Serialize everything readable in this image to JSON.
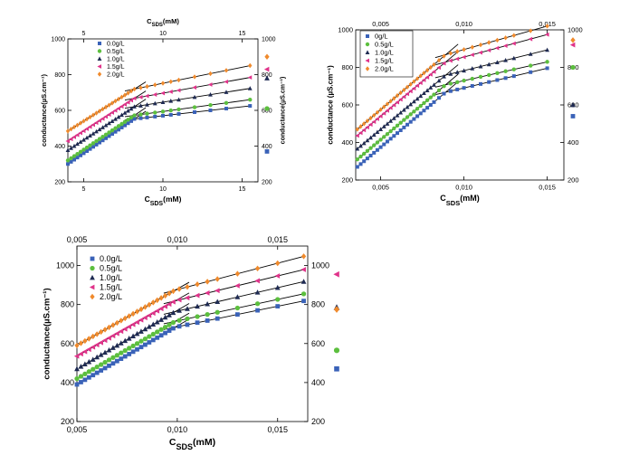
{
  "chart_data": [
    {
      "type": "scatter",
      "xlabel_main": "C",
      "xlabel_sub": "SDS",
      "xlabel_unit": "(mM)",
      "top_xlabel_main": "C",
      "top_xlabel_sub": "SDS",
      "top_xlabel_unit": "(mM)",
      "ylabel": "conductance(µS.cm⁻¹)",
      "right_ylabel": "conductance(µS.cm⁻¹)",
      "xlim": [
        4,
        16
      ],
      "ylim": [
        200,
        1000
      ],
      "xticks": [
        5,
        10,
        15
      ],
      "xtick_labels": [
        "5",
        "10",
        "15"
      ],
      "yticks": [
        200,
        400,
        600,
        800,
        1000
      ],
      "ytick_labels": [
        "200",
        "400",
        "600",
        "800",
        "1000"
      ],
      "grid": false,
      "legend_position": "top-left",
      "break_x": 8.2,
      "series": [
        {
          "name": "0.0g/L",
          "color": "#3a62b8",
          "marker": "square",
          "slope1": 60,
          "intercept1": 60,
          "slope2": 10,
          "outlier": 370,
          "x": [
            4,
            4.2,
            4.4,
            4.6,
            4.8,
            5,
            5.2,
            5.4,
            5.6,
            5.8,
            6,
            6.2,
            6.4,
            6.6,
            6.8,
            7,
            7.2,
            7.4,
            7.6,
            7.8,
            8,
            8.2,
            8.6,
            9,
            9.5,
            10,
            10.5,
            11,
            12,
            13,
            14,
            15.5
          ]
        },
        {
          "name": "0.5g/L",
          "color": "#5cbf3e",
          "marker": "circle",
          "slope1": 60,
          "intercept1": 80,
          "slope2": 12,
          "outlier": 610,
          "x": [
            4,
            4.2,
            4.4,
            4.6,
            4.8,
            5,
            5.2,
            5.4,
            5.6,
            5.8,
            6,
            6.2,
            6.4,
            6.6,
            6.8,
            7,
            7.2,
            7.4,
            7.6,
            7.8,
            8,
            8.2,
            8.6,
            9,
            9.5,
            10,
            10.5,
            11,
            12,
            13,
            14,
            15.5
          ]
        },
        {
          "name": "1.0g/L",
          "color": "#1e2a52",
          "marker": "triangle-up",
          "slope1": 58,
          "intercept1": 145,
          "slope2": 14,
          "outlier": 780,
          "x": [
            4,
            4.2,
            4.4,
            4.6,
            4.8,
            5,
            5.2,
            5.4,
            5.6,
            5.8,
            6,
            6.2,
            6.4,
            6.6,
            6.8,
            7,
            7.2,
            7.4,
            7.6,
            7.8,
            8,
            8.2,
            8.6,
            9,
            9.5,
            10,
            10.5,
            11,
            12,
            13,
            14,
            15.5
          ]
        },
        {
          "name": "1.5g/L",
          "color": "#e0338a",
          "marker": "triangle-left",
          "slope1": 57,
          "intercept1": 200,
          "slope2": 16,
          "outlier": 830,
          "x": [
            4,
            4.2,
            4.4,
            4.6,
            4.8,
            5,
            5.2,
            5.4,
            5.6,
            5.8,
            6,
            6.2,
            6.4,
            6.6,
            6.8,
            7,
            7.2,
            7.4,
            7.6,
            7.8,
            8,
            8.2,
            8.6,
            9,
            9.5,
            10,
            10.5,
            11,
            12,
            13,
            14,
            15.5
          ]
        },
        {
          "name": "2.0g/L",
          "color": "#f08a2c",
          "marker": "diamond",
          "slope1": 56,
          "intercept1": 260,
          "slope2": 18,
          "outlier": 900,
          "x": [
            4,
            4.2,
            4.4,
            4.6,
            4.8,
            5,
            5.2,
            5.4,
            5.6,
            5.8,
            6,
            6.2,
            6.4,
            6.6,
            6.8,
            7,
            7.2,
            7.4,
            7.6,
            7.8,
            8,
            8.2,
            8.6,
            9,
            9.5,
            10,
            10.5,
            11,
            12,
            13,
            14,
            15.5
          ]
        }
      ]
    },
    {
      "type": "scatter",
      "xlabel_main": "C",
      "xlabel_sub": "SDS",
      "xlabel_unit": "(mM)",
      "ylabel": "conductance (µS.cm⁻¹)",
      "xlim": [
        0.0035,
        0.016
      ],
      "ylim": [
        200,
        1000
      ],
      "xticks": [
        0.005,
        0.01,
        0.015
      ],
      "xtick_labels": [
        "0,005",
        "0,010",
        "0,015"
      ],
      "yticks": [
        200,
        400,
        600,
        800,
        1000
      ],
      "ytick_labels": [
        "200",
        "400",
        "600",
        "800",
        "1000"
      ],
      "right_yticks": [
        200,
        400,
        600,
        800,
        1000
      ],
      "right_ytick_labels": [
        "200",
        "400",
        "600",
        "800",
        "1000"
      ],
      "grid": false,
      "legend_position": "top-left",
      "break_x": 0.0089,
      "series": [
        {
          "name": "0g/L",
          "color": "#3a62b8",
          "marker": "square",
          "slope1": 75000,
          "intercept1": 0,
          "slope2": 21000,
          "outlier": 540,
          "x": [
            0.0036,
            0.0038,
            0.004,
            0.0042,
            0.0044,
            0.0046,
            0.0048,
            0.005,
            0.0052,
            0.0054,
            0.0056,
            0.0058,
            0.006,
            0.0062,
            0.0064,
            0.0066,
            0.0068,
            0.007,
            0.0072,
            0.0074,
            0.0076,
            0.0078,
            0.008,
            0.0082,
            0.0085,
            0.0088,
            0.0092,
            0.0096,
            0.01,
            0.0105,
            0.011,
            0.0115,
            0.012,
            0.0125,
            0.013,
            0.014,
            0.015
          ]
        },
        {
          "name": "0.5g/L",
          "color": "#5cbf3e",
          "marker": "circle",
          "slope1": 75000,
          "intercept1": 40,
          "slope2": 20000,
          "outlier": 800,
          "x": [
            0.0036,
            0.0038,
            0.004,
            0.0042,
            0.0044,
            0.0046,
            0.0048,
            0.005,
            0.0052,
            0.0054,
            0.0056,
            0.0058,
            0.006,
            0.0062,
            0.0064,
            0.0066,
            0.0068,
            0.007,
            0.0072,
            0.0074,
            0.0076,
            0.0078,
            0.008,
            0.0082,
            0.0085,
            0.0088,
            0.0092,
            0.0096,
            0.01,
            0.0105,
            0.011,
            0.0115,
            0.012,
            0.0125,
            0.013,
            0.014,
            0.015
          ]
        },
        {
          "name": "1.0g/L",
          "color": "#1e2a52",
          "marker": "triangle-up",
          "slope1": 74000,
          "intercept1": 100,
          "slope2": 22000,
          "outlier": 600,
          "x": [
            0.0036,
            0.0038,
            0.004,
            0.0042,
            0.0044,
            0.0046,
            0.0048,
            0.005,
            0.0052,
            0.0054,
            0.0056,
            0.0058,
            0.006,
            0.0062,
            0.0064,
            0.0066,
            0.0068,
            0.007,
            0.0072,
            0.0074,
            0.0076,
            0.0078,
            0.008,
            0.0082,
            0.0085,
            0.0088,
            0.0092,
            0.0096,
            0.01,
            0.0105,
            0.011,
            0.0115,
            0.012,
            0.0125,
            0.013,
            0.014,
            0.015
          ]
        },
        {
          "name": "1.5g/L",
          "color": "#e0338a",
          "marker": "triangle-left",
          "slope1": 74000,
          "intercept1": 170,
          "slope2": 24000,
          "outlier": 920,
          "x": [
            0.0036,
            0.0038,
            0.004,
            0.0042,
            0.0044,
            0.0046,
            0.0048,
            0.005,
            0.0052,
            0.0054,
            0.0056,
            0.0058,
            0.006,
            0.0062,
            0.0064,
            0.0066,
            0.0068,
            0.007,
            0.0072,
            0.0074,
            0.0076,
            0.0078,
            0.008,
            0.0082,
            0.0085,
            0.0088,
            0.0092,
            0.0096,
            0.01,
            0.0105,
            0.011,
            0.0115,
            0.012,
            0.0125,
            0.013,
            0.014,
            0.015
          ]
        },
        {
          "name": "2.0g/L",
          "color": "#f08a2c",
          "marker": "diamond",
          "slope1": 75000,
          "intercept1": 200,
          "slope2": 25000,
          "outlier": 945,
          "x": [
            0.0036,
            0.0038,
            0.004,
            0.0042,
            0.0044,
            0.0046,
            0.0048,
            0.005,
            0.0052,
            0.0054,
            0.0056,
            0.0058,
            0.006,
            0.0062,
            0.0064,
            0.0066,
            0.0068,
            0.007,
            0.0072,
            0.0074,
            0.0076,
            0.0078,
            0.008,
            0.0082,
            0.0085,
            0.0088,
            0.0092,
            0.0096,
            0.01,
            0.0105,
            0.011,
            0.0115,
            0.012,
            0.0125,
            0.013,
            0.014,
            0.015
          ]
        }
      ]
    },
    {
      "type": "scatter",
      "xlabel_main": "C",
      "xlabel_sub": "SDS",
      "xlabel_unit": "(mM)",
      "ylabel": "conductance(µS.cm⁻¹)",
      "xlim": [
        0.005,
        0.0165
      ],
      "ylim": [
        200,
        1100
      ],
      "xticks": [
        0.005,
        0.01,
        0.015
      ],
      "xtick_labels": [
        "0,005",
        "0,010",
        "0,015"
      ],
      "yticks": [
        200,
        400,
        600,
        800,
        1000
      ],
      "ytick_labels": [
        "200",
        "400",
        "600",
        "800",
        "1000"
      ],
      "right_yticks": [
        200,
        400,
        600,
        800,
        1000
      ],
      "right_ytick_labels": [
        "200",
        "400",
        "600",
        "800",
        "1000"
      ],
      "grid": false,
      "legend_position": "top-left",
      "break_x": 0.0099,
      "series": [
        {
          "name": "0.0g/L",
          "color": "#3a62b8",
          "marker": "square",
          "slope1": 60000,
          "intercept1": 90,
          "slope2": 21000,
          "outlier": 470,
          "x": [
            0.005,
            0.0052,
            0.0054,
            0.0056,
            0.0058,
            0.006,
            0.0062,
            0.0064,
            0.0066,
            0.0068,
            0.007,
            0.0072,
            0.0074,
            0.0076,
            0.0078,
            0.008,
            0.0082,
            0.0084,
            0.0086,
            0.0088,
            0.009,
            0.0092,
            0.0094,
            0.0096,
            0.0098,
            0.0101,
            0.0105,
            0.011,
            0.0115,
            0.012,
            0.013,
            0.014,
            0.015,
            0.0163
          ]
        },
        {
          "name": "0.5g/L",
          "color": "#5cbf3e",
          "marker": "circle",
          "slope1": 60000,
          "intercept1": 120,
          "slope2": 22000,
          "outlier": 565,
          "x": [
            0.005,
            0.0052,
            0.0054,
            0.0056,
            0.0058,
            0.006,
            0.0062,
            0.0064,
            0.0066,
            0.0068,
            0.007,
            0.0072,
            0.0074,
            0.0076,
            0.0078,
            0.008,
            0.0082,
            0.0084,
            0.0086,
            0.0088,
            0.009,
            0.0092,
            0.0094,
            0.0096,
            0.0098,
            0.0101,
            0.0105,
            0.011,
            0.0115,
            0.012,
            0.013,
            0.014,
            0.015,
            0.0163
          ]
        },
        {
          "name": "1.0g/L",
          "color": "#1e2a52",
          "marker": "triangle-up",
          "slope1": 60000,
          "intercept1": 170,
          "slope2": 24000,
          "outlier": 785,
          "x": [
            0.005,
            0.0052,
            0.0054,
            0.0056,
            0.0058,
            0.006,
            0.0062,
            0.0064,
            0.0066,
            0.0068,
            0.007,
            0.0072,
            0.0074,
            0.0076,
            0.0078,
            0.008,
            0.0082,
            0.0084,
            0.0086,
            0.0088,
            0.009,
            0.0092,
            0.0094,
            0.0096,
            0.0098,
            0.0101,
            0.0105,
            0.011,
            0.0115,
            0.012,
            0.013,
            0.014,
            0.015,
            0.0163
          ]
        },
        {
          "name": "1.5g/L",
          "color": "#e0338a",
          "marker": "triangle-left",
          "slope1": 58000,
          "intercept1": 245,
          "slope2": 25000,
          "outlier": 955,
          "x": [
            0.005,
            0.0052,
            0.0054,
            0.0056,
            0.0058,
            0.006,
            0.0062,
            0.0064,
            0.0066,
            0.0068,
            0.007,
            0.0072,
            0.0074,
            0.0076,
            0.0078,
            0.008,
            0.0082,
            0.0084,
            0.0086,
            0.0088,
            0.009,
            0.0092,
            0.0094,
            0.0096,
            0.0098,
            0.0101,
            0.0105,
            0.011,
            0.0115,
            0.012,
            0.013,
            0.014,
            0.015,
            0.0163
          ]
        },
        {
          "name": "2.0g/L",
          "color": "#f08a2c",
          "marker": "diamond",
          "slope1": 58000,
          "intercept1": 300,
          "slope2": 27000,
          "outlier": 775,
          "x": [
            0.005,
            0.0052,
            0.0054,
            0.0056,
            0.0058,
            0.006,
            0.0062,
            0.0064,
            0.0066,
            0.0068,
            0.007,
            0.0072,
            0.0074,
            0.0076,
            0.0078,
            0.008,
            0.0082,
            0.0084,
            0.0086,
            0.0088,
            0.009,
            0.0092,
            0.0094,
            0.0096,
            0.0098,
            0.0101,
            0.0105,
            0.011,
            0.0115,
            0.012,
            0.013,
            0.014,
            0.015,
            0.0163
          ]
        }
      ]
    }
  ]
}
